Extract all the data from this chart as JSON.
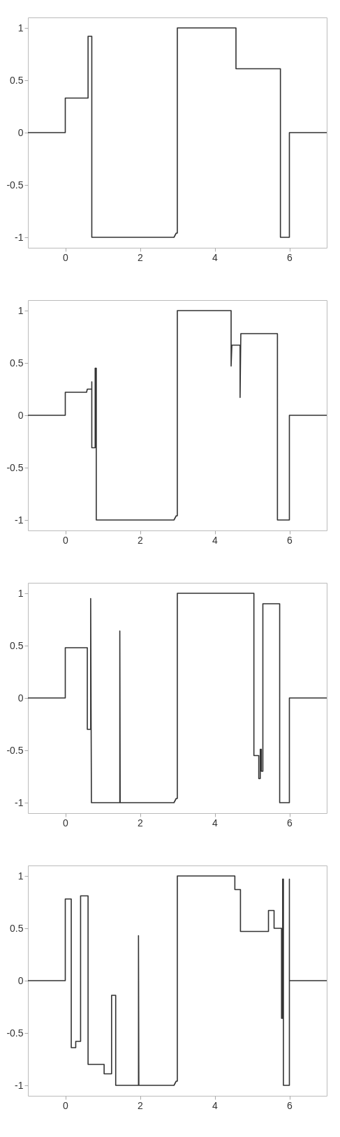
{
  "chart_data": [
    {
      "type": "line",
      "xlim": [
        -1,
        7
      ],
      "xticks": [
        0,
        2,
        4,
        6
      ],
      "ylim": [
        -1.1,
        1.1
      ],
      "yticks": [
        -1,
        -0.5,
        0,
        0.5,
        1
      ],
      "grid": false,
      "marker": "none",
      "line_style": "solid",
      "x": [
        -1,
        0,
        0,
        0.61,
        0.61,
        0.71,
        0.71,
        2.91,
        2.97,
        3.0,
        3.0,
        4.57,
        4.57,
        5.76,
        5.76,
        6.0,
        6.0,
        7
      ],
      "series": [
        {
          "color": "#333333",
          "values": [
            0,
            0,
            0.33,
            0.33,
            0.92,
            0.92,
            -1,
            -1,
            -0.96,
            -0.96,
            1,
            1,
            0.61,
            0.61,
            -1,
            -1,
            0,
            0
          ]
        }
      ]
    },
    {
      "type": "line",
      "xlim": [
        -1,
        7
      ],
      "xticks": [
        0,
        2,
        4,
        6
      ],
      "ylim": [
        -1.1,
        1.1
      ],
      "yticks": [
        -1,
        -0.5,
        0,
        0.5,
        1
      ],
      "grid": false,
      "marker": "none",
      "line_style": "solid",
      "x": [
        -1,
        0,
        0,
        0.57,
        0.59,
        0.71,
        0.71,
        0.71,
        0.8,
        0.8,
        0.83,
        0.83,
        2.91,
        2.97,
        3.0,
        3.0,
        4.44,
        4.44,
        4.46,
        4.68,
        4.68,
        4.7,
        5.68,
        5.68,
        6.0,
        6.0,
        7
      ],
      "series": [
        {
          "color": "#333333",
          "values": [
            0,
            0,
            0.22,
            0.22,
            0.25,
            0.25,
            0.32,
            -0.31,
            -0.31,
            0.45,
            0.45,
            -1,
            -1,
            -0.96,
            -0.96,
            1,
            1,
            0.47,
            0.67,
            0.67,
            0.17,
            0.78,
            0.78,
            -1,
            -1,
            0,
            0
          ]
        }
      ]
    },
    {
      "type": "line",
      "xlim": [
        -1,
        7
      ],
      "xticks": [
        0,
        2,
        4,
        6
      ],
      "ylim": [
        -1.1,
        1.1
      ],
      "yticks": [
        -1,
        -0.5,
        0,
        0.5,
        1
      ],
      "grid": false,
      "marker": "none",
      "line_style": "solid",
      "x": [
        -1,
        0,
        0,
        0.59,
        0.59,
        0.68,
        0.68,
        0.7,
        1.46,
        1.46,
        1.47,
        2.91,
        2.97,
        3.0,
        3.0,
        5.05,
        5.05,
        5.18,
        5.18,
        5.22,
        5.22,
        5.25,
        5.25,
        5.29,
        5.29,
        5.74,
        5.74,
        6.0,
        6.0,
        7
      ],
      "series": [
        {
          "color": "#333333",
          "values": [
            0,
            0,
            0.48,
            0.48,
            -0.3,
            -0.3,
            0.95,
            -1,
            -1,
            0.64,
            -1,
            -1,
            -0.96,
            -0.96,
            1,
            1,
            -0.55,
            -0.55,
            -0.77,
            -0.77,
            -0.49,
            -0.49,
            -0.7,
            -0.7,
            0.9,
            0.9,
            -1,
            -1,
            0,
            0
          ]
        }
      ]
    },
    {
      "type": "line",
      "xlim": [
        -1,
        7
      ],
      "xticks": [
        0,
        2,
        4,
        6
      ],
      "ylim": [
        -1.1,
        1.1
      ],
      "yticks": [
        -1,
        -0.5,
        0,
        0.5,
        1
      ],
      "grid": false,
      "marker": "none",
      "line_style": "solid",
      "x": [
        -1,
        0,
        0,
        0.16,
        0.16,
        0.28,
        0.28,
        0.41,
        0.41,
        0.61,
        0.61,
        1.04,
        1.04,
        1.24,
        1.24,
        1.35,
        1.35,
        1.96,
        1.96,
        1.97,
        2.91,
        2.97,
        3.0,
        3.0,
        4.54,
        4.54,
        4.69,
        4.69,
        5.44,
        5.44,
        5.59,
        5.59,
        5.79,
        5.79,
        5.82,
        5.82,
        5.84,
        5.84,
        6.0,
        6.0,
        6.0,
        7
      ],
      "series": [
        {
          "color": "#333333",
          "values": [
            0,
            0,
            0.78,
            0.78,
            -0.64,
            -0.64,
            -0.58,
            -0.58,
            0.81,
            0.81,
            -0.8,
            -0.8,
            -0.89,
            -0.89,
            -0.14,
            -0.14,
            -1,
            -1,
            0.43,
            -1,
            -1,
            -0.96,
            -0.96,
            1,
            1,
            0.87,
            0.87,
            0.47,
            0.47,
            0.67,
            0.67,
            0.5,
            0.5,
            -0.36,
            -0.36,
            0.97,
            0.97,
            -1,
            -1,
            0.97,
            0,
            0
          ]
        }
      ]
    }
  ]
}
